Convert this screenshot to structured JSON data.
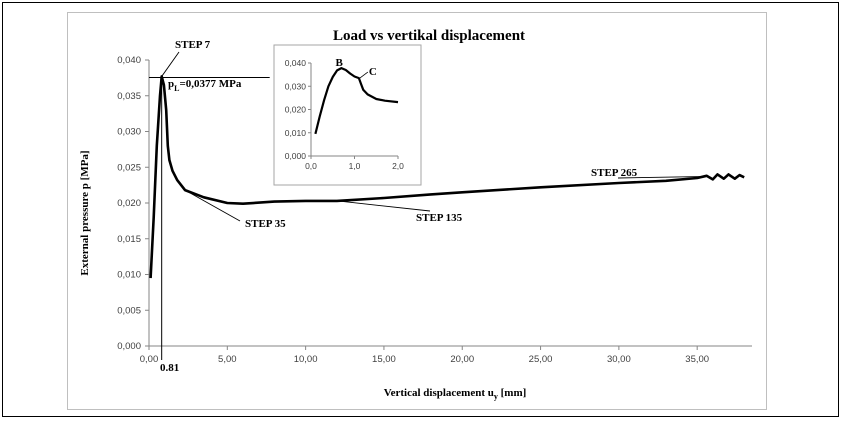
{
  "chart_data": [
    {
      "type": "line",
      "title": "Load vs vertikal displacement",
      "xlabel": "Vertical displacement u",
      "xlabel_sub": "y",
      "xlabel_unit": " [mm]",
      "ylabel": "External pressure p [MPa]",
      "xlim": [
        0,
        38.5
      ],
      "ylim": [
        0,
        0.04
      ],
      "x_ticks": [
        "0,00",
        "5,00",
        "10,00",
        "15,00",
        "20,00",
        "25,00",
        "30,00",
        "35,00"
      ],
      "x_tick_values": [
        0,
        5,
        10,
        15,
        20,
        25,
        30,
        35
      ],
      "y_ticks": [
        "0,000",
        "0,005",
        "0,010",
        "0,015",
        "0,020",
        "0,025",
        "0,030",
        "0,035",
        "0,040"
      ],
      "y_tick_values": [
        0,
        0.005,
        0.01,
        0.015,
        0.02,
        0.025,
        0.03,
        0.035,
        0.04
      ],
      "grid": false,
      "series": [
        {
          "x": [
            0.1,
            0.3,
            0.5,
            0.7,
            0.81,
            0.95,
            1.1,
            1.2,
            1.3,
            1.5,
            1.8,
            2.3,
            3.5,
            5,
            6,
            8,
            10,
            12,
            15,
            18,
            20,
            25,
            30,
            33,
            35,
            35.6,
            36,
            36.3,
            36.7,
            37,
            37.4,
            37.7,
            38
          ],
          "y": [
            0.0095,
            0.018,
            0.028,
            0.035,
            0.0377,
            0.0365,
            0.033,
            0.028,
            0.026,
            0.0245,
            0.0232,
            0.0218,
            0.0208,
            0.02,
            0.0199,
            0.0202,
            0.0203,
            0.0203,
            0.0207,
            0.0212,
            0.0215,
            0.0222,
            0.0228,
            0.0231,
            0.0235,
            0.0238,
            0.0233,
            0.024,
            0.0234,
            0.024,
            0.0234,
            0.0239,
            0.0236
          ]
        }
      ],
      "annotations": [
        {
          "text": "STEP 7",
          "x": 0.81,
          "y": 0.0377
        },
        {
          "text": "STEP  35",
          "x": 2.3,
          "y": 0.0218
        },
        {
          "text": "STEP 135",
          "x": 12,
          "y": 0.0203
        },
        {
          "text": "STEP 265",
          "x": 35.2,
          "y": 0.0237
        }
      ],
      "peak_label": {
        "p": "p",
        "sub": "L",
        "rest": "=0,0377 MPa"
      },
      "marker_label": "0.81"
    },
    {
      "type": "line",
      "title": "",
      "xlim": [
        0,
        2.0
      ],
      "ylim": [
        0,
        0.04
      ],
      "x_ticks": [
        "0,0",
        "1,0",
        "2,0"
      ],
      "x_tick_values": [
        0,
        1,
        2
      ],
      "y_ticks": [
        "0,000",
        "0,010",
        "0,020",
        "0,030",
        "0,040"
      ],
      "y_tick_values": [
        0,
        0.01,
        0.02,
        0.03,
        0.04
      ],
      "series": [
        {
          "x": [
            0.1,
            0.2,
            0.3,
            0.4,
            0.5,
            0.6,
            0.7,
            0.8,
            0.9,
            1.0,
            1.1,
            1.15,
            1.2,
            1.3,
            1.5,
            1.7,
            2.0
          ],
          "y": [
            0.0095,
            0.017,
            0.024,
            0.03,
            0.034,
            0.0368,
            0.0378,
            0.037,
            0.0355,
            0.0342,
            0.0335,
            0.031,
            0.0285,
            0.0265,
            0.0245,
            0.0238,
            0.0232
          ]
        }
      ],
      "point_labels": [
        {
          "text": "B",
          "x": 0.7,
          "y": 0.0378
        },
        {
          "text": "C",
          "x": 1.1,
          "y": 0.0335
        }
      ]
    }
  ]
}
